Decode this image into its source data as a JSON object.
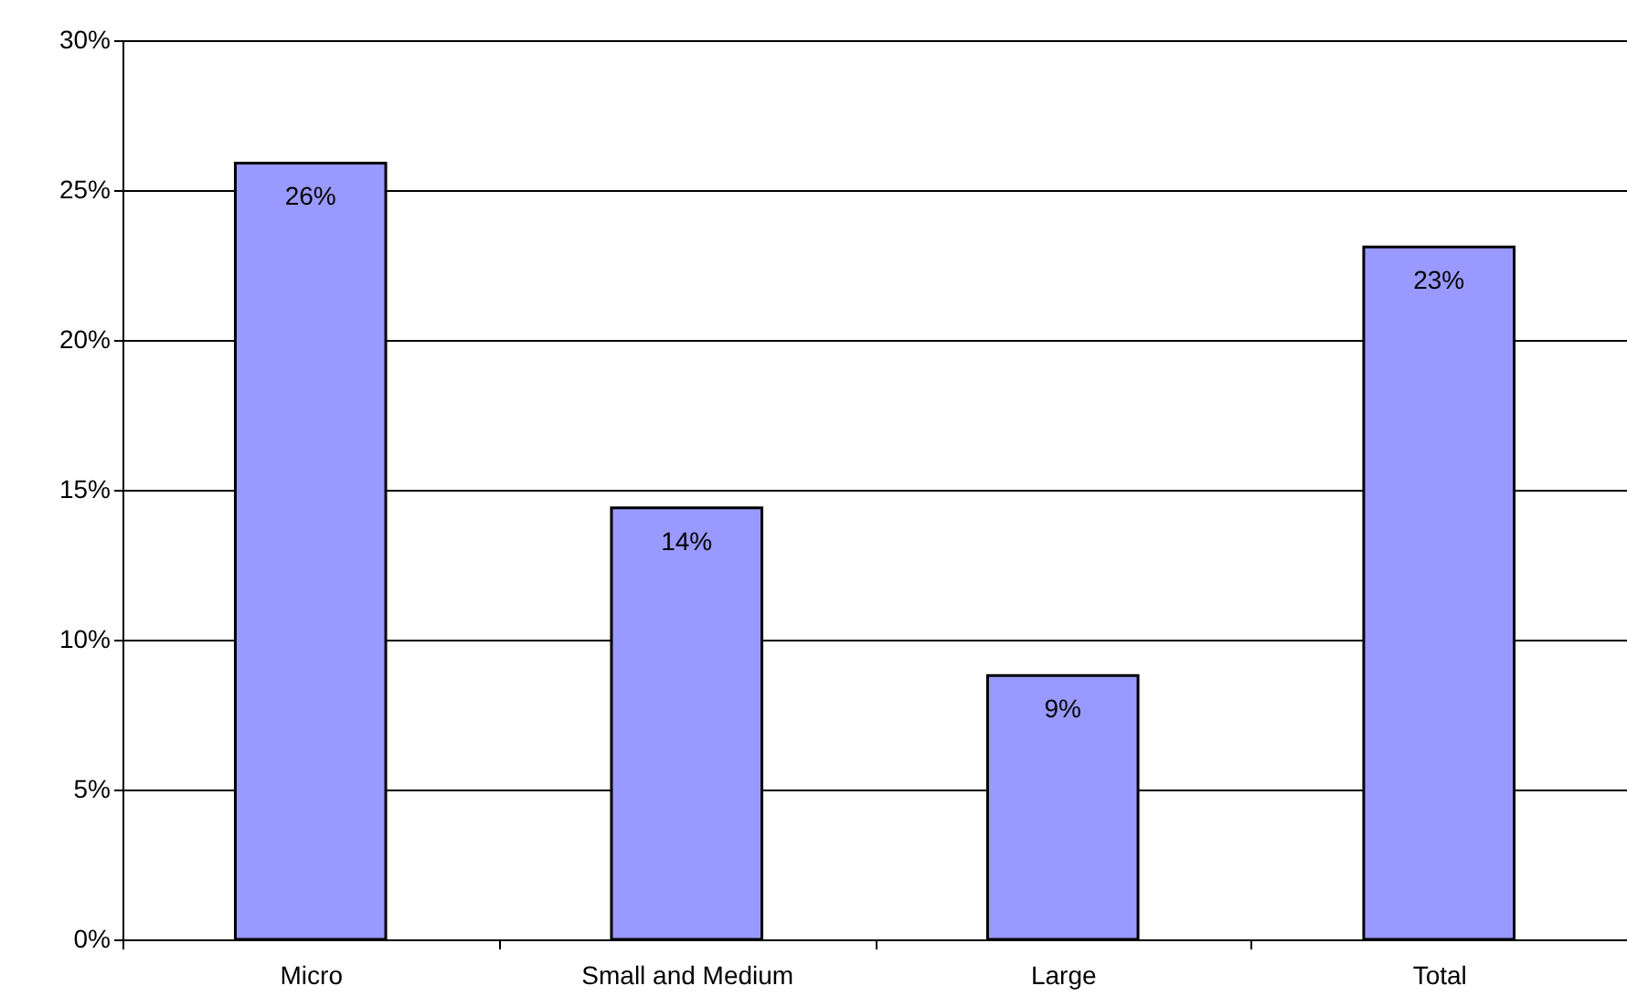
{
  "chart_data": {
    "type": "bar",
    "categories": [
      "Micro",
      "Small and Medium",
      "Large",
      "Total"
    ],
    "values": [
      25.9,
      14.4,
      8.8,
      23.1
    ],
    "value_labels": [
      "26%",
      "14%",
      "9%",
      "23%"
    ],
    "color": "#9999ff",
    "ylim": [
      0,
      30
    ],
    "yticks": [
      {
        "value": 0,
        "label": "0%"
      },
      {
        "value": 5,
        "label": "5%"
      },
      {
        "value": 10,
        "label": "10%"
      },
      {
        "value": 15,
        "label": "15%"
      },
      {
        "value": 20,
        "label": "20%"
      },
      {
        "value": 25,
        "label": "25%"
      },
      {
        "value": 30,
        "label": "30%"
      }
    ],
    "grid": "y"
  }
}
